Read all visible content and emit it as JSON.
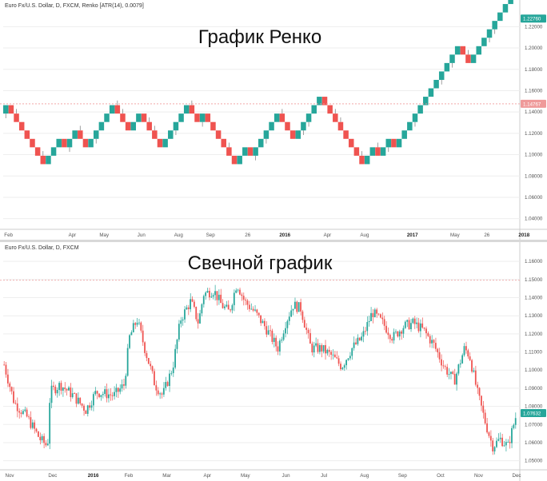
{
  "colors": {
    "up": "#26a69a",
    "down": "#ef5350",
    "grid": "#eeeeee",
    "refline": "#ef9a9a",
    "badge_up": "#26a69a",
    "badge_ref": "#ef9a9a"
  },
  "top": {
    "legend": "Euro Fx/U.S. Dollar, D, FXCM, Renko [ATR(14), 0.0079]",
    "title": "График Ренко"
  },
  "bottom": {
    "legend": "Euro Fx/U.S. Dollar, D, FXCM",
    "title": "Свечной график"
  },
  "chart_data": [
    {
      "type": "renko",
      "ylim": [
        1.03,
        1.236
      ],
      "yticks": [
        "1.22000",
        "1.20000",
        "1.18000",
        "1.16000",
        "1.14000",
        "1.12000",
        "1.10000",
        "1.08000",
        "1.06000",
        "1.04000"
      ],
      "xticks": [
        {
          "label": "Feb",
          "brick": 1,
          "bold": false
        },
        {
          "label": "Apr",
          "brick": 13,
          "bold": false
        },
        {
          "label": "May",
          "brick": 19,
          "bold": false
        },
        {
          "label": "Jun",
          "brick": 26,
          "bold": false
        },
        {
          "label": "Aug",
          "brick": 33,
          "bold": false
        },
        {
          "label": "Sep",
          "brick": 39,
          "bold": false
        },
        {
          "label": "26",
          "brick": 46,
          "bold": false
        },
        {
          "label": "2016",
          "brick": 53,
          "bold": true
        },
        {
          "label": "Apr",
          "brick": 61,
          "bold": false
        },
        {
          "label": "Aug",
          "brick": 68,
          "bold": false
        },
        {
          "label": "2017",
          "brick": 77,
          "bold": true
        },
        {
          "label": "May",
          "brick": 85,
          "bold": false
        },
        {
          "label": "26",
          "brick": 91,
          "bold": false
        },
        {
          "label": "2018",
          "brick": 98,
          "bold": true
        }
      ],
      "brick_size": 0.0079,
      "start_level": 1.1385,
      "directions": [
        1,
        -1,
        -1,
        -1,
        -1,
        -1,
        -1,
        -1,
        1,
        1,
        1,
        -1,
        1,
        1,
        -1,
        -1,
        1,
        1,
        1,
        1,
        1,
        -1,
        -1,
        -1,
        1,
        1,
        -1,
        -1,
        -1,
        -1,
        1,
        1,
        1,
        1,
        1,
        -1,
        -1,
        1,
        -1,
        -1,
        -1,
        -1,
        -1,
        -1,
        1,
        1,
        -1,
        1,
        1,
        1,
        1,
        1,
        -1,
        -1,
        -1,
        1,
        1,
        1,
        1,
        1,
        -1,
        -1,
        -1,
        -1,
        -1,
        -1,
        -1,
        -1,
        1,
        1,
        -1,
        1,
        1,
        -1,
        1,
        1,
        1,
        1,
        1,
        1,
        1,
        1,
        1,
        1,
        1,
        1,
        -1,
        -1,
        1,
        1,
        1,
        1,
        1,
        1,
        1,
        1
      ],
      "price_badge": "1.22760",
      "price_value": 1.2276,
      "ref_badge": "1.14767",
      "ref_value": 1.14767
    },
    {
      "type": "candlestick",
      "ylim": [
        1.045,
        1.168
      ],
      "yticks": [
        "1.16000",
        "1.15000",
        "1.14000",
        "1.13000",
        "1.12000",
        "1.11000",
        "1.10000",
        "1.09000",
        "1.08000",
        "1.07000",
        "1.06000",
        "1.05000"
      ],
      "xticks": [
        {
          "label": "Nov",
          "t": 0.0,
          "bold": false
        },
        {
          "label": "Dec",
          "t": 0.085,
          "bold": false
        },
        {
          "label": "2016",
          "t": 0.165,
          "bold": true
        },
        {
          "label": "Feb",
          "t": 0.235,
          "bold": false
        },
        {
          "label": "Mar",
          "t": 0.31,
          "bold": false
        },
        {
          "label": "Apr",
          "t": 0.39,
          "bold": false
        },
        {
          "label": "May",
          "t": 0.465,
          "bold": false
        },
        {
          "label": "Jun",
          "t": 0.545,
          "bold": false
        },
        {
          "label": "Jul",
          "t": 0.62,
          "bold": false
        },
        {
          "label": "Aug",
          "t": 0.7,
          "bold": false
        },
        {
          "label": "Sep",
          "t": 0.775,
          "bold": false
        },
        {
          "label": "Oct",
          "t": 0.85,
          "bold": false
        },
        {
          "label": "Nov",
          "t": 0.925,
          "bold": false
        },
        {
          "label": "Dec",
          "t": 1.0,
          "bold": false
        }
      ],
      "path": [
        [
          0,
          1.103
        ],
        [
          0.02,
          1.082
        ],
        [
          0.045,
          1.074
        ],
        [
          0.07,
          1.062
        ],
        [
          0.085,
          1.058
        ],
        [
          0.09,
          1.088
        ],
        [
          0.11,
          1.092
        ],
        [
          0.135,
          1.086
        ],
        [
          0.16,
          1.078
        ],
        [
          0.18,
          1.088
        ],
        [
          0.215,
          1.086
        ],
        [
          0.235,
          1.092
        ],
        [
          0.245,
          1.118
        ],
        [
          0.26,
          1.128
        ],
        [
          0.275,
          1.112
        ],
        [
          0.295,
          1.092
        ],
        [
          0.31,
          1.086
        ],
        [
          0.33,
          1.102
        ],
        [
          0.345,
          1.128
        ],
        [
          0.365,
          1.138
        ],
        [
          0.38,
          1.126
        ],
        [
          0.39,
          1.142
        ],
        [
          0.41,
          1.144
        ],
        [
          0.425,
          1.136
        ],
        [
          0.44,
          1.132
        ],
        [
          0.455,
          1.148
        ],
        [
          0.47,
          1.138
        ],
        [
          0.49,
          1.132
        ],
        [
          0.51,
          1.124
        ],
        [
          0.535,
          1.112
        ],
        [
          0.55,
          1.126
        ],
        [
          0.565,
          1.136
        ],
        [
          0.58,
          1.134
        ],
        [
          0.6,
          1.112
        ],
        [
          0.62,
          1.112
        ],
        [
          0.64,
          1.108
        ],
        [
          0.66,
          1.102
        ],
        [
          0.68,
          1.112
        ],
        [
          0.7,
          1.118
        ],
        [
          0.72,
          1.132
        ],
        [
          0.74,
          1.126
        ],
        [
          0.76,
          1.118
        ],
        [
          0.78,
          1.124
        ],
        [
          0.8,
          1.126
        ],
        [
          0.82,
          1.122
        ],
        [
          0.84,
          1.114
        ],
        [
          0.86,
          1.102
        ],
        [
          0.88,
          1.094
        ],
        [
          0.9,
          1.112
        ],
        [
          0.91,
          1.108
        ],
        [
          0.925,
          1.088
        ],
        [
          0.94,
          1.072
        ],
        [
          0.955,
          1.058
        ],
        [
          0.97,
          1.062
        ],
        [
          0.985,
          1.058
        ],
        [
          1.0,
          1.074
        ]
      ],
      "price_badge": "1.07632",
      "price_value": 1.07632,
      "ref_value": 1.1496
    }
  ]
}
